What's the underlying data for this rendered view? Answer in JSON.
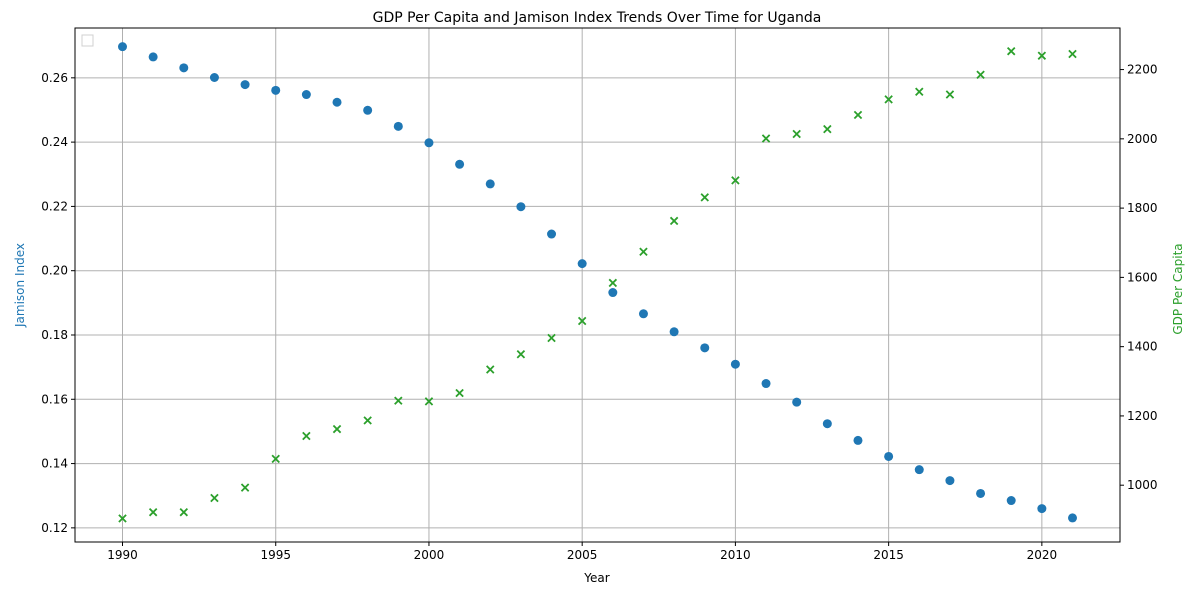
{
  "chart_data": {
    "type": "scatter",
    "title": "GDP Per Capita and Jamison Index Trends Over Time for Uganda",
    "xlabel": "Year",
    "ylabel_left": "Jamison Index",
    "ylabel_right": "GDP Per Capita",
    "x": [
      1990,
      1991,
      1992,
      1993,
      1994,
      1995,
      1996,
      1997,
      1998,
      1999,
      2000,
      2001,
      2002,
      2003,
      2004,
      2005,
      2006,
      2007,
      2008,
      2009,
      2010,
      2011,
      2012,
      2013,
      2014,
      2015,
      2016,
      2017,
      2018,
      2019,
      2020,
      2021
    ],
    "xlim": [
      1988.45,
      2022.55
    ],
    "x_ticks": [
      1990,
      1995,
      2000,
      2005,
      2010,
      2015,
      2020
    ],
    "series": [
      {
        "name": "",
        "axis": "left",
        "marker": "circle",
        "color": "#1f77b4",
        "values": [
          0.2697,
          0.2665,
          0.2631,
          0.2601,
          0.2579,
          0.2561,
          0.2548,
          0.2524,
          0.2499,
          0.2449,
          0.2398,
          0.2331,
          0.227,
          0.2199,
          0.2114,
          0.2022,
          0.1932,
          0.1866,
          0.181,
          0.176,
          0.1709,
          0.1649,
          0.1591,
          0.1524,
          0.1472,
          0.1422,
          0.1381,
          0.1347,
          0.1307,
          0.1285,
          0.126,
          0.1231
        ]
      },
      {
        "name": "",
        "axis": "right",
        "marker": "x",
        "color": "#2ca02c",
        "values": [
          904,
          922,
          922,
          963,
          993,
          1076,
          1142,
          1162,
          1187,
          1244,
          1242,
          1266,
          1334,
          1378,
          1425,
          1474,
          1584,
          1674,
          1763,
          1831,
          1880,
          2001,
          2014,
          2028,
          2069,
          2114,
          2136,
          2128,
          2185,
          2253,
          2240,
          2245
        ]
      }
    ],
    "ylim_left": [
      0.1156,
      0.2755
    ],
    "y_ticks_left": [
      0.12,
      0.14,
      0.16,
      0.18,
      0.2,
      0.22,
      0.24,
      0.26
    ],
    "ylim_right": [
      836,
      2320
    ],
    "y_ticks_right": [
      1000,
      1200,
      1400,
      1600,
      1800,
      2000,
      2200
    ],
    "grid": true,
    "legend": "upper-left (empty)",
    "colors": {
      "left_axis_label": "#1f77b4",
      "right_axis_label": "#2ca02c",
      "grid": "#b0b0b0"
    }
  }
}
